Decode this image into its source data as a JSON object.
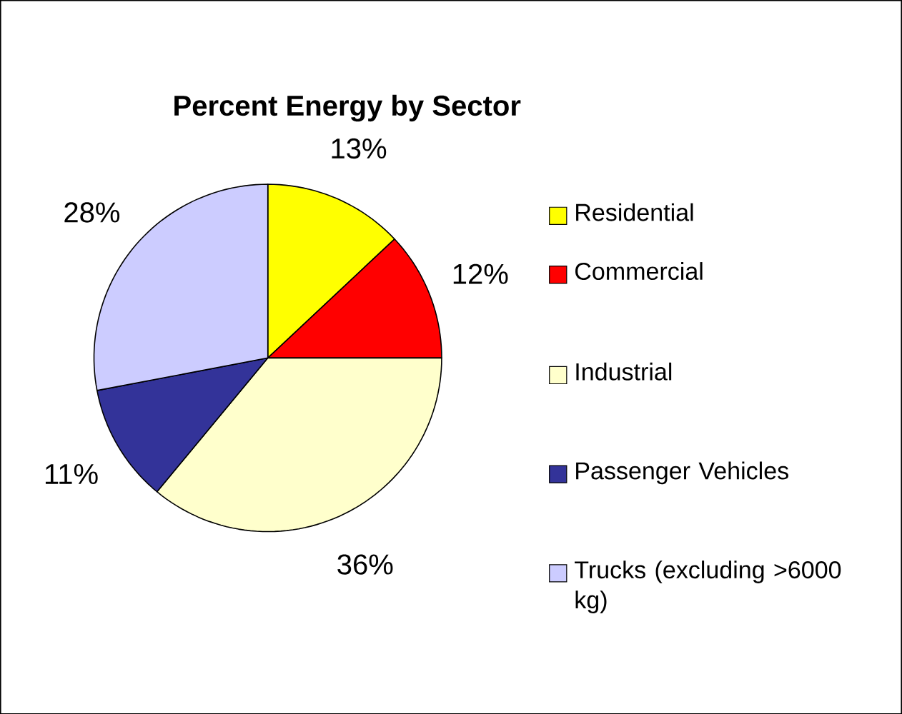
{
  "chart_data": {
    "type": "pie",
    "title": "Percent Energy by Sector",
    "categories": [
      "Residential",
      "Commercial",
      "Industrial",
      "Passenger Vehicles",
      "Trucks (excluding >6000 kg)"
    ],
    "values": [
      13,
      12,
      36,
      11,
      28
    ],
    "value_labels": [
      "13%",
      "12%",
      "36%",
      "11%",
      "28%"
    ],
    "colors": [
      "#ffff00",
      "#ff0000",
      "#ffffcc",
      "#333399",
      "#ccccff"
    ],
    "legend": "right"
  }
}
